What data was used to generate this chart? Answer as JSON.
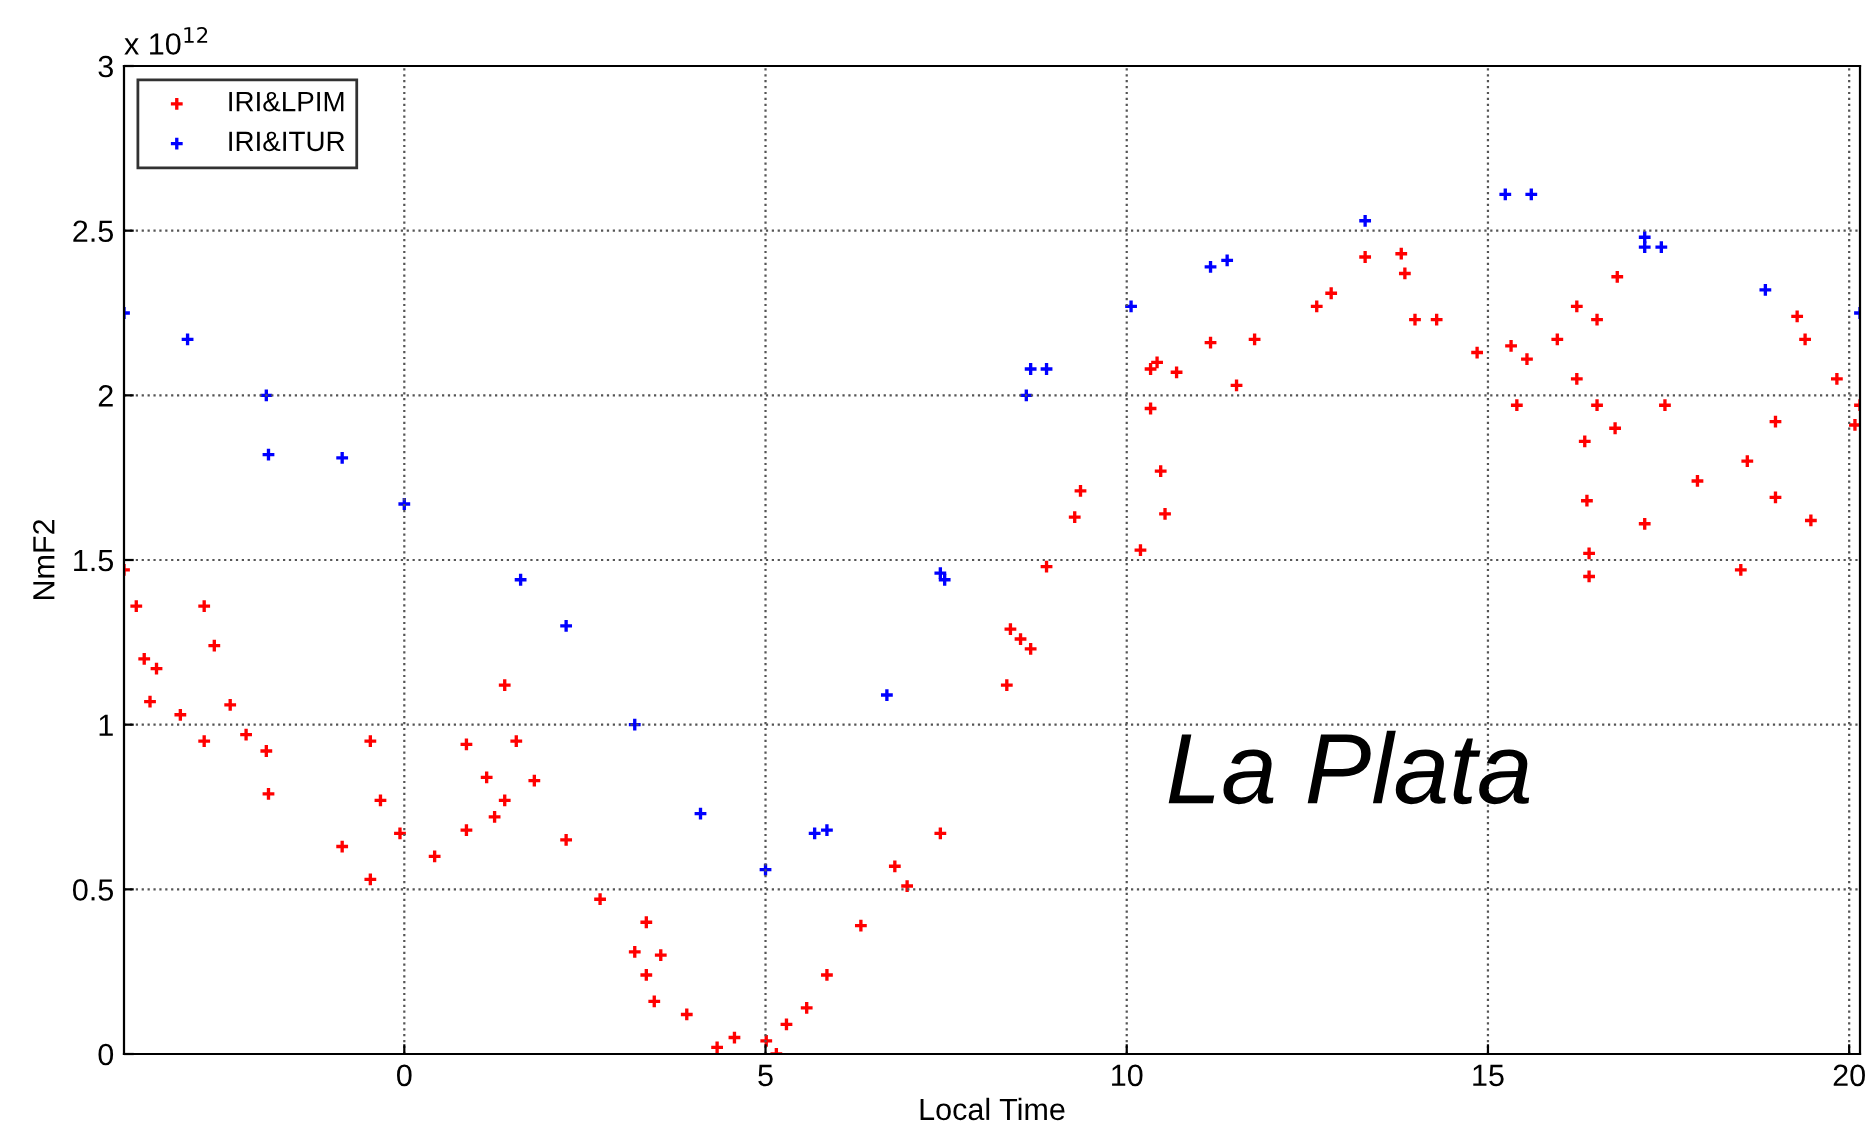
{
  "chart_data": {
    "type": "scatter",
    "xlabel": "Local Time",
    "ylabel": "NmF2",
    "annotations": [
      "x 10$^{12}$",
      "La Plata"
    ],
    "xlim": [
      -3.88,
      20.15
    ],
    "ylim": [
      0,
      3
    ],
    "xticks": [
      0,
      5,
      10,
      15,
      20
    ],
    "yticks": [
      0,
      0.5,
      1,
      1.5,
      2,
      2.5,
      3
    ],
    "grid": true,
    "legend": "top left",
    "marker": "cross",
    "series": [
      {
        "name": "IRI&LPIM",
        "color": "#ff0000",
        "x": [
          -3.88,
          -3.71,
          -3.6,
          -3.52,
          -3.43,
          -3.1,
          -2.77,
          -2.77,
          -2.63,
          -2.41,
          -2.19,
          -1.91,
          -1.88,
          -0.86,
          -0.47,
          -0.47,
          -0.33,
          -0.06,
          0.42,
          0.86,
          0.86,
          1.14,
          1.25,
          1.39,
          1.39,
          1.55,
          1.8,
          2.24,
          2.71,
          3.19,
          3.35,
          3.35,
          3.55,
          3.46,
          3.91,
          4.33,
          4.57,
          5.01,
          5.15,
          5.29,
          5.57,
          5.85,
          6.32,
          6.79,
          6.96,
          7.42,
          8.34,
          8.39,
          8.67,
          8.53,
          8.89,
          9.28,
          9.36,
          10.33,
          10.42,
          10.19,
          10.33,
          10.47,
          10.53,
          10.69,
          11.16,
          11.52,
          11.77,
          12.63,
          12.83,
          13.3,
          13.8,
          13.85,
          13.99,
          14.29,
          14.85,
          15.32,
          15.4,
          15.54,
          15.96,
          16.23,
          16.51,
          16.76,
          17.17,
          16.79,
          16.51,
          16.23,
          16.34,
          16.37,
          16.4,
          16.4,
          17.45,
          17.9,
          18.5,
          18.59,
          18.98,
          18.98,
          19.28,
          19.39,
          19.47,
          19.83,
          20.08,
          20.15
        ],
        "values": [
          1.47,
          1.36,
          1.2,
          1.07,
          1.17,
          1.03,
          0.95,
          1.36,
          1.24,
          1.06,
          0.97,
          0.92,
          0.79,
          0.63,
          0.53,
          0.95,
          0.77,
          0.67,
          0.6,
          0.68,
          0.94,
          0.84,
          0.72,
          0.77,
          1.12,
          0.95,
          0.83,
          0.65,
          0.47,
          0.31,
          0.24,
          0.4,
          0.3,
          0.16,
          0.12,
          0.02,
          0.05,
          0.04,
          0.0,
          0.09,
          0.14,
          0.24,
          0.39,
          0.57,
          0.51,
          0.67,
          1.12,
          1.29,
          1.23,
          1.26,
          1.48,
          1.63,
          1.71,
          2.08,
          2.1,
          1.53,
          1.96,
          1.77,
          1.64,
          2.07,
          2.16,
          2.03,
          2.17,
          2.27,
          2.31,
          2.42,
          2.43,
          2.37,
          2.23,
          2.23,
          2.13,
          2.15,
          1.97,
          2.11,
          2.17,
          2.05,
          1.97,
          1.9,
          1.61,
          2.36,
          2.23,
          2.27,
          1.86,
          1.68,
          1.52,
          1.45,
          1.97,
          1.74,
          1.47,
          1.8,
          1.69,
          1.92,
          2.24,
          2.17,
          1.62,
          2.05,
          1.91,
          1.97
        ]
      },
      {
        "name": "IRI&ITUR",
        "color": "#0000ff",
        "x": [
          -3.88,
          -3.0,
          -1.91,
          -1.88,
          -0.86,
          0.0,
          1.61,
          2.24,
          3.19,
          4.1,
          5.0,
          5.68,
          5.85,
          6.68,
          7.42,
          7.48,
          8.61,
          8.67,
          8.89,
          10.06,
          11.16,
          11.39,
          13.3,
          15.24,
          15.6,
          17.17,
          17.17,
          17.4,
          18.84,
          20.15
        ],
        "values": [
          2.25,
          2.17,
          2.0,
          1.82,
          1.81,
          1.67,
          1.44,
          1.3,
          1.0,
          0.73,
          0.56,
          0.67,
          0.68,
          1.09,
          1.46,
          1.44,
          2.0,
          2.08,
          2.08,
          2.27,
          2.39,
          2.41,
          2.53,
          2.61,
          2.61,
          2.48,
          2.45,
          2.45,
          2.32,
          2.25
        ]
      }
    ]
  }
}
